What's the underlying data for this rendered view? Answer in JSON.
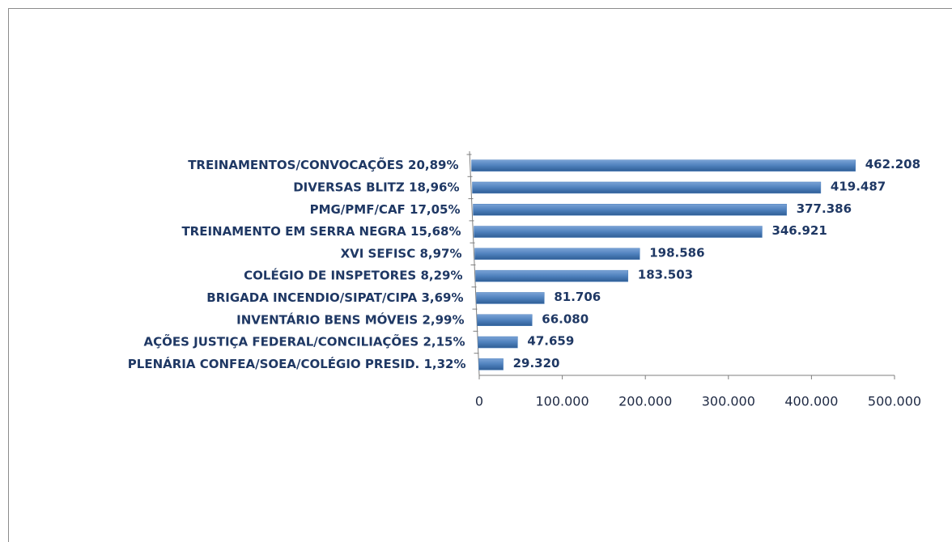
{
  "chart_data": {
    "type": "bar",
    "orientation": "horizontal",
    "categories": [
      "TREINAMENTOS/CONVOCAÇÕES 20,89%",
      "DIVERSAS BLITZ  18,96%",
      "PMG/PMF/CAF 17,05%",
      "TREINAMENTO EM SERRA NEGRA 15,68%",
      "XVI SEFISC 8,97%",
      "COLÉGIO DE INSPETORES 8,29%",
      "BRIGADA INCENDIO/SIPAT/CIPA 3,69%",
      "INVENTÁRIO BENS MÓVEIS 2,99%",
      "AÇÕES JUSTIÇA FEDERAL/CONCILIAÇÕES 2,15%",
      "PLENÁRIA CONFEA/SOEA/COLÉGIO PRESID. 1,32%"
    ],
    "values": [
      462208,
      419487,
      377386,
      346921,
      198586,
      183503,
      81706,
      66080,
      47659,
      29320
    ],
    "value_labels": [
      "462.208",
      "419.487",
      "377.386",
      "346.921",
      "198.586",
      "183.503",
      "81.706",
      "66.080",
      "47.659",
      "29.320"
    ],
    "color": "#4f81bd",
    "xlim": [
      0,
      500000
    ],
    "xticks": [
      0,
      {
        "value": 100000,
        "label": "100.000"
      },
      {
        "value": 200000,
        "label": "200.000"
      },
      {
        "value": 300000,
        "label": "300.000"
      },
      {
        "value": 400000,
        "label": "400.000"
      },
      {
        "value": 500000,
        "label": "500.000"
      }
    ],
    "grid": false
  }
}
